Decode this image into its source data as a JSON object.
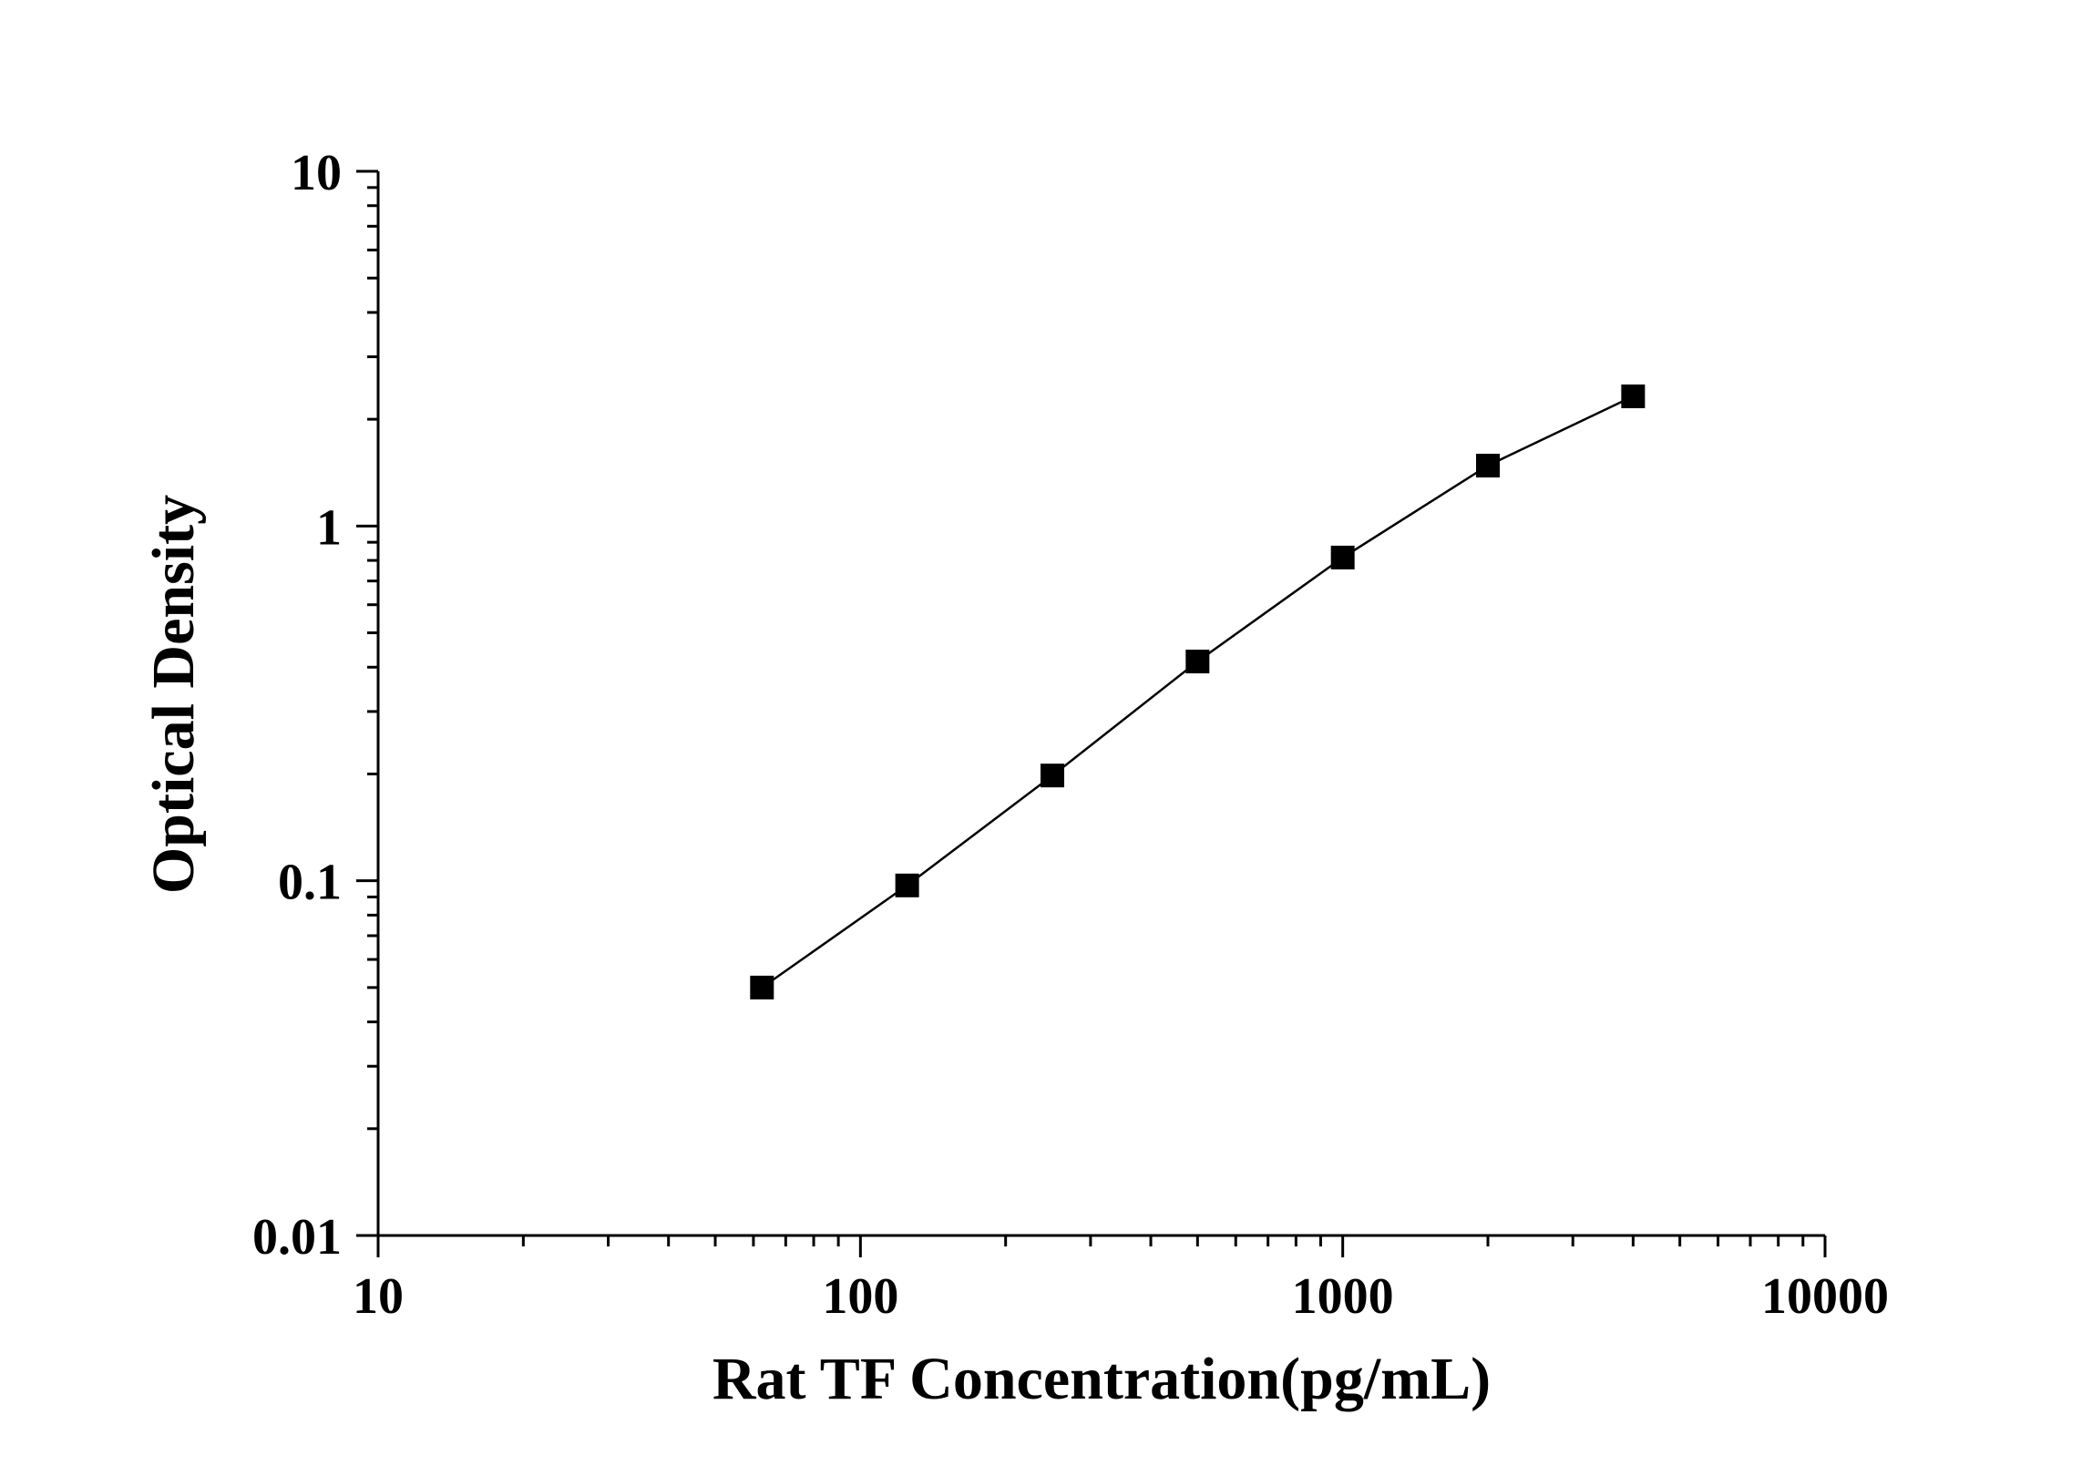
{
  "chart_data": {
    "type": "line",
    "xlabel": "Rat TF Concentration(pg/mL)",
    "ylabel": "Optical Density",
    "x_scale": "log",
    "y_scale": "log",
    "xlim": [
      10,
      10000
    ],
    "ylim": [
      0.01,
      10
    ],
    "x_ticks": [
      "10",
      "100",
      "1000",
      "10000"
    ],
    "y_ticks": [
      "0.01",
      "0.1",
      "1",
      "10"
    ],
    "grid": false,
    "marker": "square",
    "line_color": "#000000",
    "marker_color": "#000000",
    "series": [
      {
        "x": [
          62.5,
          125,
          250,
          500,
          1000,
          2000,
          4000
        ],
        "y": [
          0.05,
          0.097,
          0.198,
          0.415,
          0.815,
          1.48,
          2.32
        ]
      }
    ]
  }
}
